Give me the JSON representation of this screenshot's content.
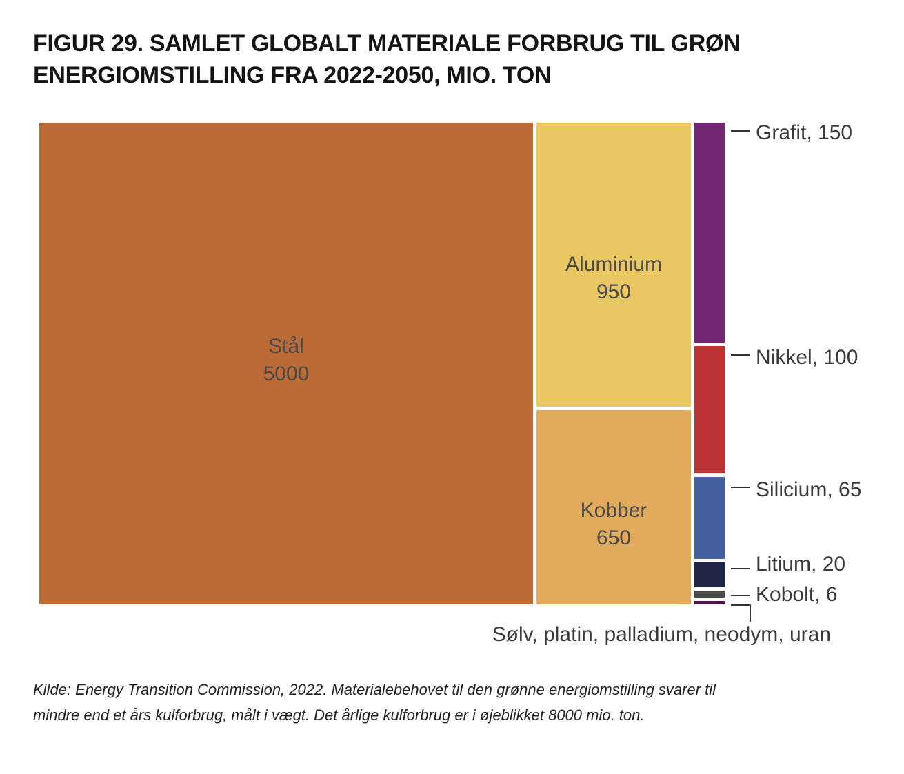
{
  "title_lines": [
    "FIGUR 29. SAMLET GLOBALT MATERIALE FORBRUG TIL GRØN",
    "ENERGIOMSTILLING FRA 2022-2050, MIO. TON"
  ],
  "source": "Kilde: Energy Transition Commission, 2022. Materialebehovet til den grønne energiomstilling svarer til mindre end et års kulforbrug, målt i vægt. Det årlige kulforbrug er i øjeblikket 8000 mio. ton.",
  "chart_data": {
    "type": "treemap",
    "unit": "mio. ton",
    "items": [
      {
        "name": "Stål",
        "value": 5000,
        "color": "#BC6B36",
        "label_lines": [
          "Stål",
          "5000"
        ]
      },
      {
        "name": "Aluminium",
        "value": 950,
        "color": "#E9C762",
        "label_lines": [
          "Aluminium",
          "950"
        ]
      },
      {
        "name": "Kobber",
        "value": 650,
        "color": "#E2AA5B",
        "label_lines": [
          "Kobber",
          "650"
        ]
      },
      {
        "name": "Grafit",
        "value": 150,
        "color": "#732671",
        "label": "Grafit, 150"
      },
      {
        "name": "Nikkel",
        "value": 100,
        "color": "#BD3334",
        "label": "Nikkel, 100"
      },
      {
        "name": "Silicium",
        "value": 65,
        "color": "#435F9E",
        "label": "Silicium, 65"
      },
      {
        "name": "Litium",
        "value": 20,
        "color": "#212546",
        "label": "Litium, 20"
      },
      {
        "name": "Kobolt",
        "value": 6,
        "color": "#4A4A4A",
        "label": "Kobolt, 6"
      },
      {
        "name": "Sølv, platin, palladium, neodym, uran",
        "value": null,
        "color": "#4F1346",
        "label": "Sølv, platin, palladium, neodym, uran"
      }
    ]
  }
}
